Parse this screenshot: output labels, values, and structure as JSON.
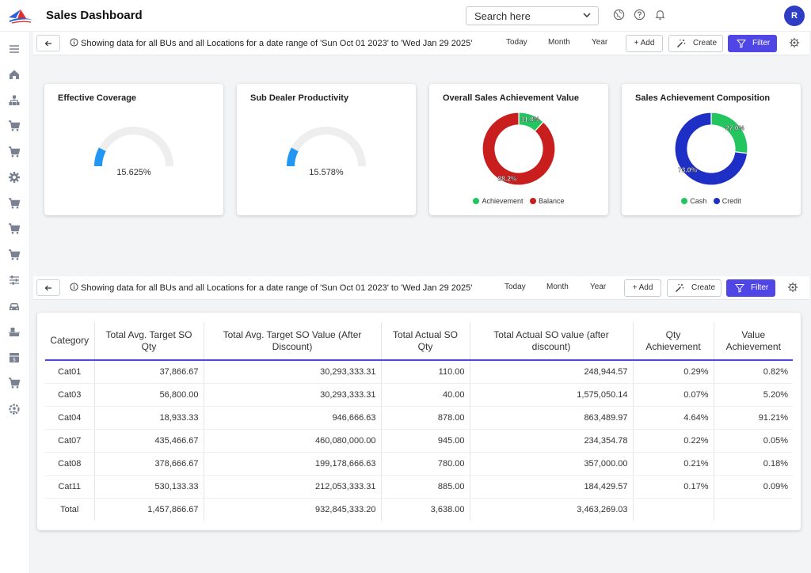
{
  "header": {
    "title": "Sales Dashboard",
    "search_value": "Search here",
    "avatar_initial": "R"
  },
  "toolbar": {
    "info": "Showing data for all BUs and all Locations for a date range of 'Sun Oct 01 2023' to 'Wed Jan 29 2025'",
    "today": "Today",
    "month": "Month",
    "year": "Year",
    "add": "+ Add",
    "create": "Create",
    "filter": "Filter"
  },
  "kpis": [
    {
      "title": "Effective Coverage",
      "value": 15.625,
      "value_label": "15.625%"
    },
    {
      "title": "Sub Dealer Productivity",
      "value": 15.578,
      "value_label": "15.578%"
    },
    {
      "title": "Overall Sales Achievement Value",
      "slices": [
        {
          "label": "Achievement",
          "value": 11.8,
          "text": "11.8%",
          "color": "#22c55e"
        },
        {
          "label": "Balance",
          "value": 88.2,
          "text": "88.2%",
          "color": "#c81e1e"
        }
      ]
    },
    {
      "title": "Sales Achievement Composition",
      "slices": [
        {
          "label": "Cash",
          "value": 27.0,
          "text": "27.0%",
          "color": "#22c55e"
        },
        {
          "label": "Credit",
          "value": 73.0,
          "text": "73.0%",
          "color": "#1d2fc4"
        }
      ]
    }
  ],
  "colors": {
    "accent": "#4f46e5",
    "gauge_fill": "#2196f3",
    "gauge_track": "#eeeeee"
  },
  "table": {
    "columns": [
      "Category",
      "Total Avg. Target SO Qty",
      "Total Avg. Target SO Value (After Discount)",
      "Total Actual SO Qty",
      "Total Actual SO value (after discount)",
      "Qty Achievement",
      "Value Achievement"
    ],
    "rows": [
      [
        "Cat01",
        "37,866.67",
        "30,293,333.31",
        "110.00",
        "248,944.57",
        "0.29%",
        "0.82%"
      ],
      [
        "Cat03",
        "56,800.00",
        "30,293,333.31",
        "40.00",
        "1,575,050.14",
        "0.07%",
        "5.20%"
      ],
      [
        "Cat04",
        "18,933.33",
        "946,666.63",
        "878.00",
        "863,489.97",
        "4.64%",
        "91.21%"
      ],
      [
        "Cat07",
        "435,466.67",
        "460,080,000.00",
        "945.00",
        "234,354.78",
        "0.22%",
        "0.05%"
      ],
      [
        "Cat08",
        "378,666.67",
        "199,178,666.63",
        "780.00",
        "357,000.00",
        "0.21%",
        "0.18%"
      ],
      [
        "Cat11",
        "530,133.33",
        "212,053,333.31",
        "885.00",
        "184,429.57",
        "0.17%",
        "0.09%"
      ],
      [
        "Total",
        "1,457,866.67",
        "932,845,333.20",
        "3,638.00",
        "3,463,269.03",
        "",
        ""
      ]
    ]
  }
}
